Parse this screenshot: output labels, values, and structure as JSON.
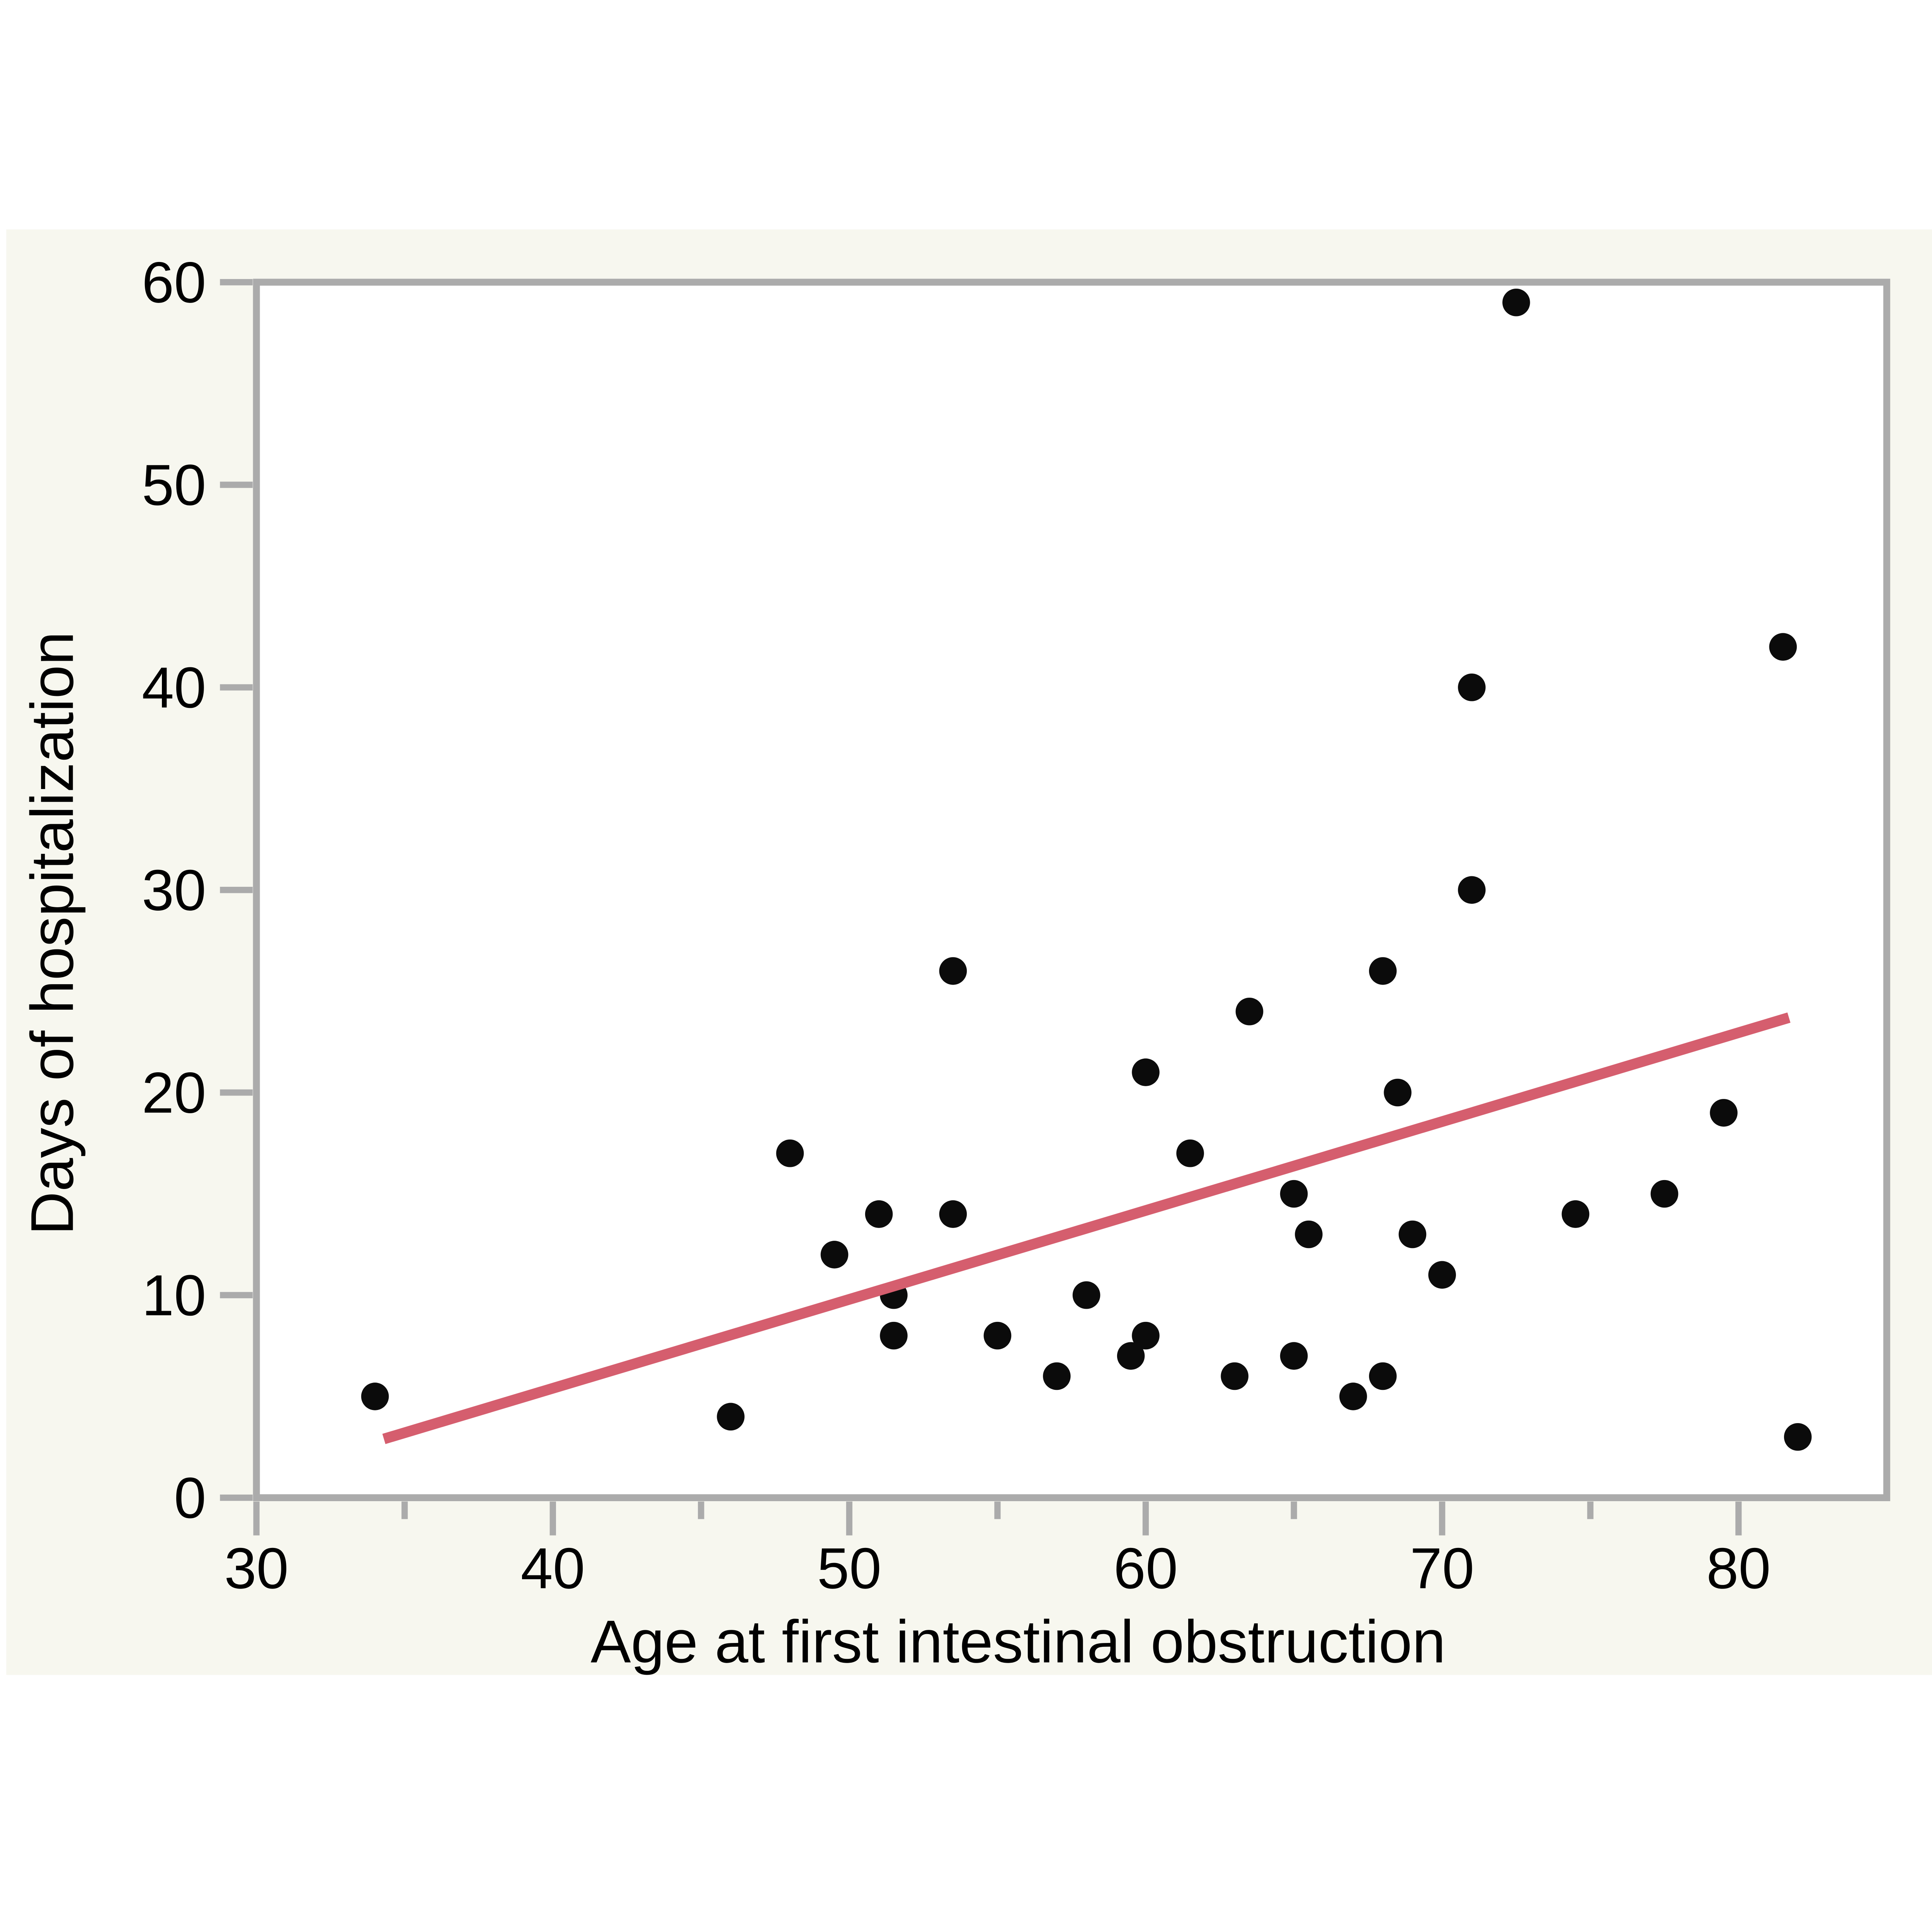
{
  "chart_data": {
    "type": "scatter",
    "xlabel": "Age at first intestinal obstruction",
    "ylabel": "Days of hospitalization",
    "xlim": [
      30,
      85
    ],
    "ylim": [
      0,
      60
    ],
    "x_major_ticks": [
      30,
      40,
      50,
      60,
      70,
      80
    ],
    "x_minor_ticks": [
      35,
      45,
      55,
      65,
      75
    ],
    "y_major_ticks": [
      0,
      10,
      20,
      30,
      40,
      50,
      60
    ],
    "grid": false,
    "legend": "none",
    "points": [
      [
        34,
        5
      ],
      [
        46,
        4
      ],
      [
        48,
        17
      ],
      [
        49.5,
        12
      ],
      [
        51,
        14
      ],
      [
        51.5,
        10
      ],
      [
        51.5,
        8
      ],
      [
        53.5,
        14
      ],
      [
        53.5,
        26
      ],
      [
        55,
        8
      ],
      [
        57,
        6
      ],
      [
        58,
        10
      ],
      [
        59.5,
        7
      ],
      [
        60,
        8
      ],
      [
        60,
        21
      ],
      [
        61.5,
        17
      ],
      [
        63,
        6
      ],
      [
        63.5,
        24
      ],
      [
        65,
        7
      ],
      [
        65,
        15
      ],
      [
        65.5,
        13
      ],
      [
        67,
        5
      ],
      [
        68,
        26
      ],
      [
        68,
        6
      ],
      [
        68.5,
        20
      ],
      [
        69,
        13
      ],
      [
        70,
        11
      ],
      [
        71,
        40
      ],
      [
        71,
        30
      ],
      [
        72.5,
        59
      ],
      [
        74.5,
        14
      ],
      [
        77.5,
        15
      ],
      [
        79.5,
        19
      ],
      [
        81.5,
        42
      ],
      [
        82,
        3
      ]
    ],
    "trend_line": {
      "x1": 34.3,
      "y1": 2.9,
      "x2": 81.7,
      "y2": 23.7
    },
    "colors": {
      "point": "#0b0b0b",
      "trend": "#d55e6e",
      "frame": "#ababab",
      "background": "#f7f7ef",
      "plot_background": "#ffffff",
      "text": "#000000"
    }
  }
}
